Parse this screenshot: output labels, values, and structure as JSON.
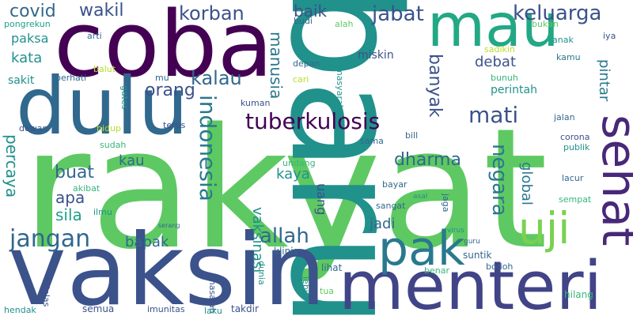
{
  "words": [
    {
      "text": "rakyat",
      "color": "#5ec962"
    },
    {
      "text": "baru",
      "color": "#21918c"
    },
    {
      "text": "vaksin",
      "color": "#3b528b"
    },
    {
      "text": "coba",
      "color": "#440154"
    },
    {
      "text": "dulu",
      "color": "#31688e"
    },
    {
      "text": "menteri",
      "color": "#414487"
    },
    {
      "text": "mau",
      "color": "#22a884"
    },
    {
      "text": "sehat",
      "color": "#482878"
    },
    {
      "text": "pak",
      "color": "#2a788e"
    },
    {
      "text": "uji",
      "color": "#7ad151"
    },
    {
      "text": "jangan",
      "color": "#31688e"
    },
    {
      "text": "tuberkulosis",
      "color": "#440154"
    },
    {
      "text": "indonesia",
      "color": "#2a788e"
    },
    {
      "text": "mati",
      "color": "#3b528b"
    },
    {
      "text": "allah",
      "color": "#31688e"
    },
    {
      "text": "jabat",
      "color": "#3b528b"
    },
    {
      "text": "keluarga",
      "color": "#3b528b"
    },
    {
      "text": "korban",
      "color": "#3b528b"
    },
    {
      "text": "wakil",
      "color": "#3b528b"
    },
    {
      "text": "covid",
      "color": "#31688e"
    },
    {
      "text": "kalau",
      "color": "#31688e"
    },
    {
      "text": "orang",
      "color": "#3b528b"
    },
    {
      "text": "manusia",
      "color": "#2a788e"
    },
    {
      "text": "negara",
      "color": "#2a788e"
    },
    {
      "text": "banyak",
      "color": "#3b528b"
    },
    {
      "text": "dharma",
      "color": "#31688e"
    },
    {
      "text": "buat",
      "color": "#31688e"
    },
    {
      "text": "percaya",
      "color": "#21918c"
    },
    {
      "text": "sila",
      "color": "#1fa088"
    },
    {
      "text": "apa",
      "color": "#3b528b"
    },
    {
      "text": "baik",
      "color": "#3b528b"
    },
    {
      "text": "bapak",
      "color": "#31688e"
    },
    {
      "text": "pintar",
      "color": "#2a788e"
    },
    {
      "text": "vaksinasi",
      "color": "#21918c"
    },
    {
      "text": "global",
      "color": "#2a788e"
    },
    {
      "text": "jadi",
      "color": "#31688e"
    },
    {
      "text": "kaya",
      "color": "#21918c"
    },
    {
      "text": "kau",
      "color": "#31688e"
    },
    {
      "text": "debat",
      "color": "#3b528b"
    },
    {
      "text": "uang",
      "color": "#3b528b"
    },
    {
      "text": "kata",
      "color": "#21918c"
    },
    {
      "text": "paksa",
      "color": "#21918c"
    },
    {
      "text": "sakit",
      "color": "#21918c"
    },
    {
      "text": "miskin",
      "color": "#3b528b"
    },
    {
      "text": "perintah",
      "color": "#21918c"
    },
    {
      "text": "pongrekun",
      "color": "#1fa088"
    },
    {
      "text": "arti",
      "color": "#31688e"
    },
    {
      "text": "budi",
      "color": "#31688e"
    },
    {
      "text": "alah",
      "color": "#5ec962"
    },
    {
      "text": "masyarakat",
      "color": "#21918c"
    },
    {
      "text": "depan",
      "color": "#31688e"
    },
    {
      "text": "cari",
      "color": "#b5de2b"
    },
    {
      "text": "sadikin",
      "color": "#b5de2b"
    },
    {
      "text": "bukan",
      "color": "#5ec962"
    },
    {
      "text": "iya",
      "color": "#3b528b"
    },
    {
      "text": "anak",
      "color": "#21918c"
    },
    {
      "text": "kamu",
      "color": "#2a788e"
    },
    {
      "text": "bunuh",
      "color": "#35b779"
    },
    {
      "text": "perhati",
      "color": "#31688e"
    },
    {
      "text": "balut",
      "color": "#b5de2b"
    },
    {
      "text": "mu",
      "color": "#31688e"
    },
    {
      "text": "gates",
      "color": "#21918c"
    },
    {
      "text": "kuman",
      "color": "#3b528b"
    },
    {
      "text": "dewan",
      "color": "#3b528b"
    },
    {
      "text": "hidup",
      "color": "#b5de2b"
    },
    {
      "text": "terus",
      "color": "#3b528b"
    },
    {
      "text": "jalan",
      "color": "#31688e"
    },
    {
      "text": "bill",
      "color": "#31688e"
    },
    {
      "text": "sama",
      "color": "#31688e"
    },
    {
      "text": "sudah",
      "color": "#35b779"
    },
    {
      "text": "corona",
      "color": "#3b528b"
    },
    {
      "text": "publik",
      "color": "#21918c"
    },
    {
      "text": "lacur",
      "color": "#31688e"
    },
    {
      "text": "undang",
      "color": "#35b779"
    },
    {
      "text": "akibat",
      "color": "#35b779"
    },
    {
      "text": "bayar",
      "color": "#31688e"
    },
    {
      "text": "ilmu",
      "color": "#21918c"
    },
    {
      "text": "asal",
      "color": "#21918c"
    },
    {
      "text": "jaga",
      "color": "#31688e"
    },
    {
      "text": "sempat",
      "color": "#35b779"
    },
    {
      "text": "sangat",
      "color": "#31688e"
    },
    {
      "text": "serang",
      "color": "#31688e"
    },
    {
      "text": "virus",
      "color": "#21918c"
    },
    {
      "text": "guru",
      "color": "#31688e"
    },
    {
      "text": "suntik",
      "color": "#31688e"
    },
    {
      "text": "klinis",
      "color": "#31688e"
    },
    {
      "text": "masalah",
      "color": "#3b528b"
    },
    {
      "text": "dunia",
      "color": "#21918c"
    },
    {
      "text": "lihat",
      "color": "#31688e"
    },
    {
      "text": "benar",
      "color": "#35b779"
    },
    {
      "text": "bodoh",
      "color": "#31688e"
    },
    {
      "text": "jelas",
      "color": "#3b528b"
    },
    {
      "text": "lebih",
      "color": "#21918c"
    },
    {
      "text": "tua",
      "color": "#5ec962"
    },
    {
      "text": "hilang",
      "color": "#35b779"
    },
    {
      "text": "hendak",
      "color": "#21918c"
    },
    {
      "text": "semua",
      "color": "#3b528b"
    },
    {
      "text": "imunitas",
      "color": "#3b528b"
    },
    {
      "text": "laku",
      "color": "#21918c"
    },
    {
      "text": "takdir",
      "color": "#3b528b"
    }
  ]
}
